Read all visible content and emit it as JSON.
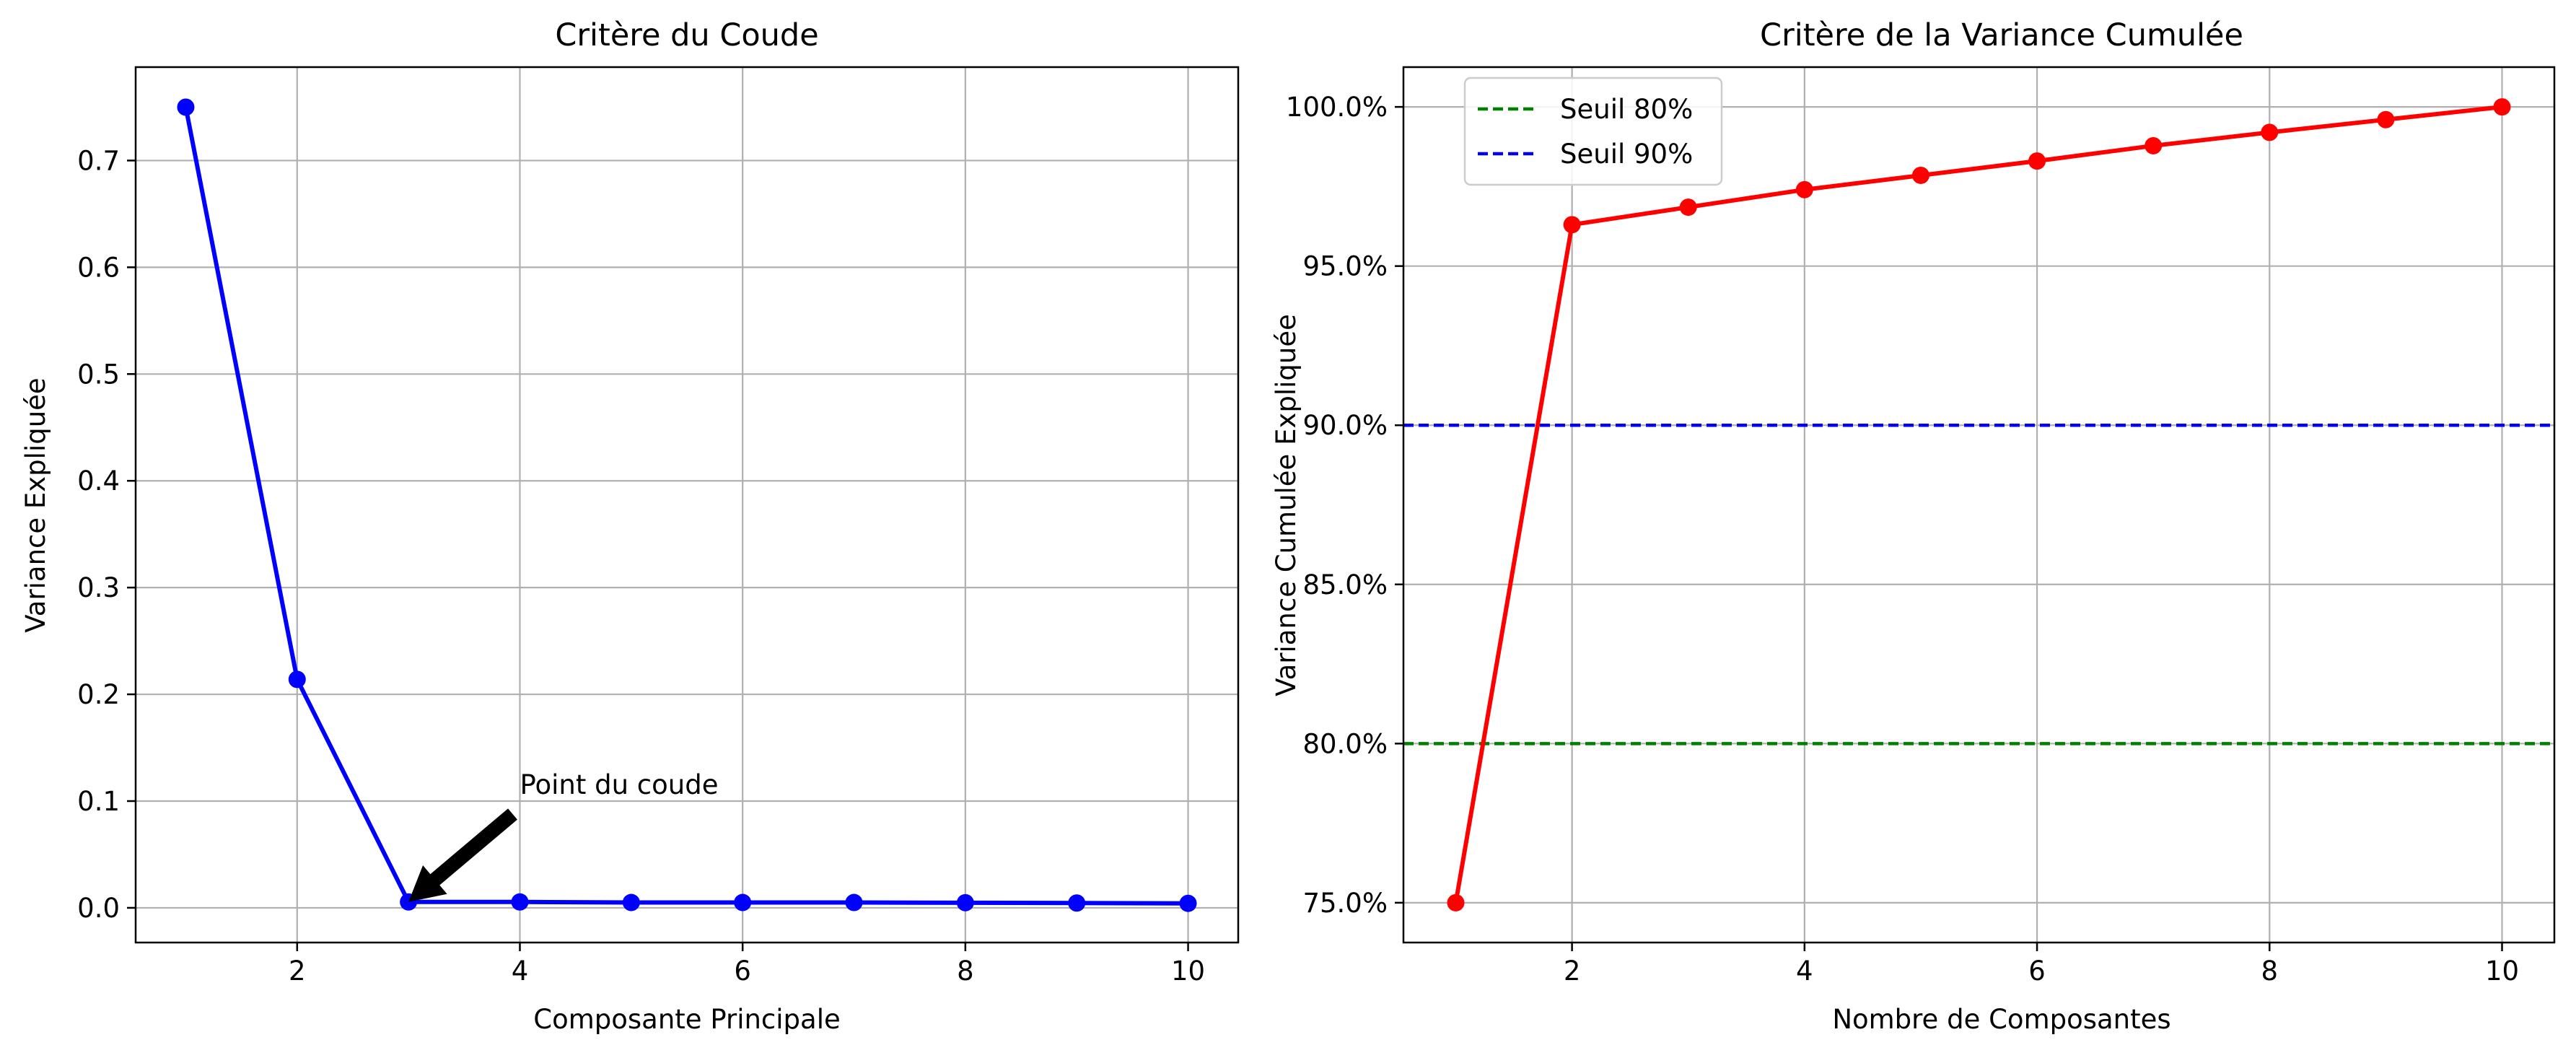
{
  "chart_data": [
    {
      "type": "line",
      "title": "Critère du Coude",
      "xlabel": "Composante Principale",
      "ylabel": "Variance Expliquée",
      "xlim": [
        0.55,
        10.45
      ],
      "ylim": [
        -0.0325,
        0.7875
      ],
      "xticks": [
        2,
        4,
        6,
        8,
        10
      ],
      "yticks": [
        0.0,
        0.1,
        0.2,
        0.3,
        0.4,
        0.5,
        0.6,
        0.7
      ],
      "ytick_labels": [
        "0.0",
        "0.1",
        "0.2",
        "0.3",
        "0.4",
        "0.5",
        "0.6",
        "0.7"
      ],
      "grid": true,
      "series": [
        {
          "color": "#0000ff",
          "marker": "circle",
          "x": [
            1,
            2,
            3,
            4,
            5,
            6,
            7,
            8,
            9,
            10
          ],
          "y": [
            0.75,
            0.214,
            0.0055,
            0.0055,
            0.005,
            0.005,
            0.005,
            0.0048,
            0.0045,
            0.0042
          ]
        }
      ],
      "annotation": {
        "text": "Point du coude",
        "point": [
          3,
          0.0055
        ],
        "text_position": [
          4,
          0.1
        ]
      }
    },
    {
      "type": "line",
      "title": "Critère de la Variance Cumulée",
      "xlabel": "Nombre de Composantes",
      "ylabel": "Variance Cumulée Expliquée",
      "xlim": [
        0.55,
        10.45
      ],
      "ylim": [
        0.7375,
        1.0125
      ],
      "xticks": [
        2,
        4,
        6,
        8,
        10
      ],
      "yticks": [
        0.75,
        0.8,
        0.85,
        0.9,
        0.95,
        1.0
      ],
      "ytick_labels": [
        "75.0%",
        "80.0%",
        "85.0%",
        "90.0%",
        "95.0%",
        "100.0%"
      ],
      "grid": true,
      "legend_position": "top-left",
      "series": [
        {
          "color": "#ff0000",
          "marker": "circle",
          "x": [
            1,
            2,
            3,
            4,
            5,
            6,
            7,
            8,
            9,
            10
          ],
          "y": [
            0.75,
            0.963,
            0.9685,
            0.974,
            0.9785,
            0.983,
            0.9878,
            0.992,
            0.996,
            1.0
          ]
        }
      ],
      "thresholds": [
        {
          "name": "Seuil 80%",
          "value": 0.8,
          "color": "#008000",
          "style": "dashed"
        },
        {
          "name": "Seuil 90%",
          "value": 0.9,
          "color": "#0000ff",
          "style": "dashed"
        }
      ]
    }
  ]
}
